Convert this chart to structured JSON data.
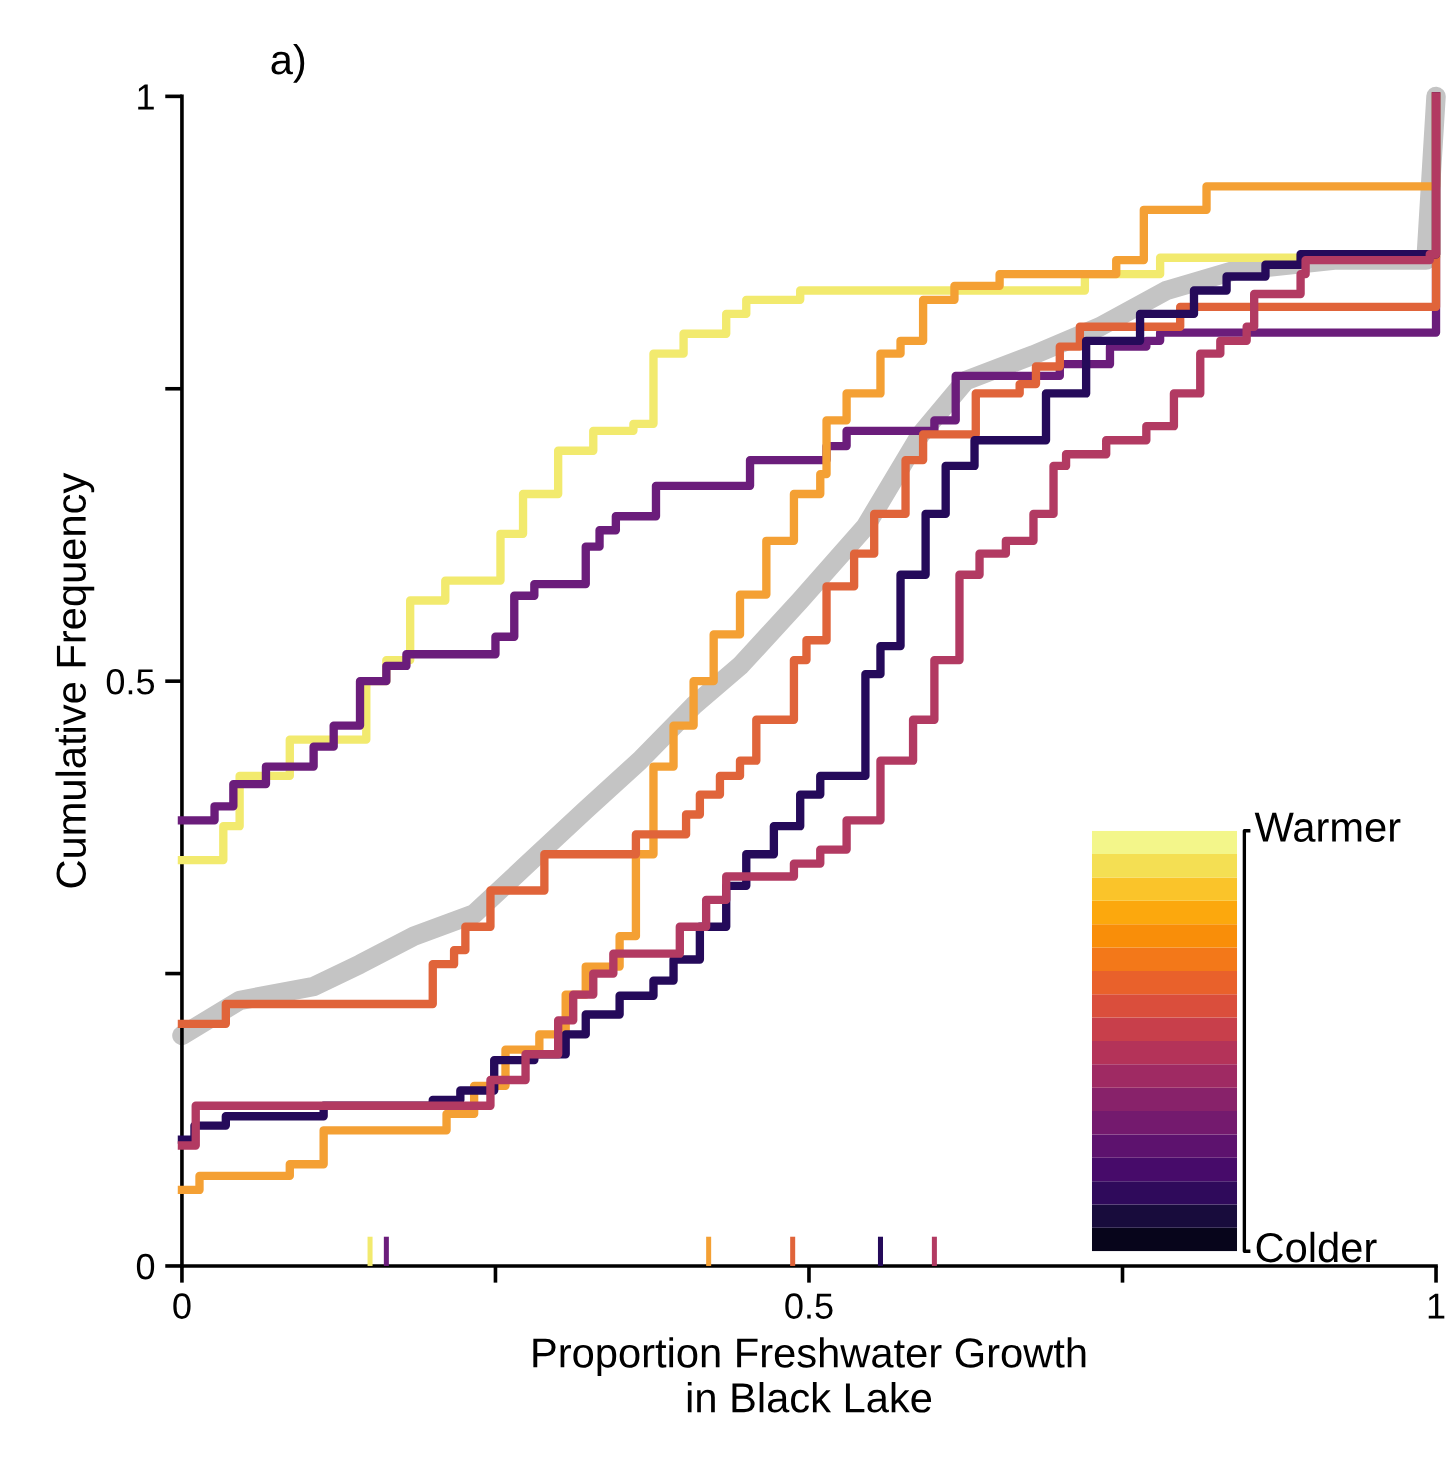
{
  "chart_data": {
    "type": "step",
    "title": "a)",
    "xlabel": "Proportion Freshwater Growth\nin Black Lake",
    "ylabel": "Cumulative Frequency",
    "xlim": [
      0,
      1
    ],
    "ylim": [
      0,
      1
    ],
    "xticks": [
      0,
      {
        "value": 0.25,
        "label": null
      },
      0.5,
      {
        "value": 0.75,
        "label": null
      },
      1
    ],
    "yticks": [
      0,
      {
        "value": 0.25,
        "label": null
      },
      0.5,
      {
        "value": 0.75,
        "label": null
      },
      1
    ],
    "grid": false,
    "marker": "none",
    "line_style": "solid",
    "annotations": [
      "Warmer",
      "Colder"
    ],
    "series": [
      {
        "type": "line",
        "color": "#c4c4c4",
        "x": [
          0,
          0.046,
          0.105,
          0.142,
          0.185,
          0.233,
          0.274,
          0.322,
          0.365,
          0.408,
          0.445,
          0.493,
          0.545,
          0.589,
          0.625,
          0.679,
          0.732,
          0.785,
          0.839,
          0.919,
          0.992,
          1
        ],
        "values": [
          0.197,
          0.227,
          0.239,
          0.258,
          0.282,
          0.301,
          0.342,
          0.39,
          0.432,
          0.479,
          0.513,
          0.569,
          0.632,
          0.711,
          0.757,
          0.779,
          0.803,
          0.834,
          0.851,
          0.86,
          0.86,
          1
        ]
      },
      {
        "color": "#f2ea6e",
        "x": [
          0,
          0.033,
          0.046,
          0.086,
          0.147,
          0.163,
          0.182,
          0.21,
          0.254,
          0.272,
          0.3,
          0.328,
          0.36,
          0.376,
          0.4,
          0.434,
          0.45,
          0.493,
          0.72,
          0.78,
          0.995,
          1
        ],
        "values": [
          0.347,
          0.376,
          0.419,
          0.45,
          0.5,
          0.518,
          0.569,
          0.586,
          0.626,
          0.66,
          0.697,
          0.714,
          0.72,
          0.78,
          0.797,
          0.814,
          0.826,
          0.834,
          0.848,
          0.862,
          0.862,
          1
        ]
      },
      {
        "color": "#6b1d7b",
        "x": [
          0,
          0.026,
          0.041,
          0.067,
          0.105,
          0.121,
          0.142,
          0.163,
          0.179,
          0.25,
          0.265,
          0.281,
          0.322,
          0.333,
          0.346,
          0.378,
          0.453,
          0.514,
          0.53,
          0.6,
          0.617,
          0.7,
          0.74,
          0.769,
          0.78,
          0.995,
          1
        ],
        "values": [
          0.381,
          0.393,
          0.412,
          0.427,
          0.444,
          0.462,
          0.5,
          0.513,
          0.523,
          0.538,
          0.573,
          0.583,
          0.615,
          0.629,
          0.641,
          0.667,
          0.689,
          0.701,
          0.714,
          0.723,
          0.761,
          0.771,
          0.786,
          0.791,
          0.798,
          0.798,
          1
        ]
      },
      {
        "color": "#f4a034",
        "x": [
          0,
          0.014,
          0.086,
          0.113,
          0.211,
          0.233,
          0.258,
          0.285,
          0.306,
          0.322,
          0.349,
          0.362,
          0.376,
          0.392,
          0.408,
          0.424,
          0.445,
          0.466,
          0.488,
          0.509,
          0.514,
          0.53,
          0.557,
          0.573,
          0.591,
          0.616,
          0.652,
          0.745,
          0.767,
          0.817,
          0.995,
          1
        ],
        "values": [
          0.065,
          0.077,
          0.087,
          0.116,
          0.13,
          0.154,
          0.185,
          0.198,
          0.232,
          0.256,
          0.282,
          0.352,
          0.427,
          0.462,
          0.5,
          0.54,
          0.574,
          0.62,
          0.66,
          0.677,
          0.723,
          0.746,
          0.78,
          0.791,
          0.826,
          0.838,
          0.848,
          0.86,
          0.903,
          0.923,
          0.923,
          1
        ]
      },
      {
        "color": "#e0643a",
        "x": [
          0,
          0.035,
          0.2,
          0.217,
          0.226,
          0.246,
          0.289,
          0.362,
          0.402,
          0.413,
          0.429,
          0.445,
          0.458,
          0.488,
          0.498,
          0.514,
          0.536,
          0.552,
          0.577,
          0.591,
          0.633,
          0.668,
          0.681,
          0.7,
          0.716,
          0.796,
          0.995,
          1
        ],
        "values": [
          0.207,
          0.224,
          0.258,
          0.27,
          0.29,
          0.321,
          0.352,
          0.369,
          0.386,
          0.403,
          0.419,
          0.432,
          0.467,
          0.518,
          0.535,
          0.581,
          0.609,
          0.643,
          0.689,
          0.711,
          0.746,
          0.754,
          0.769,
          0.786,
          0.803,
          0.82,
          0.82,
          1
        ]
      },
      {
        "color": "#250a5a",
        "x": [
          0,
          0.01,
          0.035,
          0.113,
          0.2,
          0.222,
          0.249,
          0.281,
          0.306,
          0.322,
          0.349,
          0.376,
          0.392,
          0.413,
          0.434,
          0.45,
          0.472,
          0.493,
          0.509,
          0.545,
          0.557,
          0.573,
          0.593,
          0.609,
          0.632,
          0.689,
          0.721,
          0.764,
          0.807,
          0.833,
          0.864,
          0.892,
          0.995,
          1
        ],
        "values": [
          0.108,
          0.12,
          0.128,
          0.137,
          0.142,
          0.15,
          0.176,
          0.181,
          0.198,
          0.215,
          0.231,
          0.244,
          0.262,
          0.29,
          0.325,
          0.352,
          0.376,
          0.403,
          0.419,
          0.506,
          0.53,
          0.591,
          0.643,
          0.684,
          0.706,
          0.746,
          0.791,
          0.814,
          0.834,
          0.846,
          0.856,
          0.865,
          0.865,
          1
        ]
      },
      {
        "color": "#b23a62",
        "x": [
          0,
          0.011,
          0.246,
          0.274,
          0.3,
          0.312,
          0.328,
          0.344,
          0.397,
          0.418,
          0.434,
          0.488,
          0.509,
          0.53,
          0.557,
          0.583,
          0.6,
          0.62,
          0.636,
          0.657,
          0.679,
          0.695,
          0.705,
          0.737,
          0.769,
          0.791,
          0.812,
          0.828,
          0.849,
          0.855,
          0.892,
          0.896,
          0.995,
          1
        ],
        "values": [
          0.103,
          0.137,
          0.159,
          0.181,
          0.21,
          0.232,
          0.25,
          0.267,
          0.29,
          0.313,
          0.333,
          0.344,
          0.356,
          0.381,
          0.432,
          0.467,
          0.518,
          0.591,
          0.609,
          0.62,
          0.643,
          0.684,
          0.694,
          0.706,
          0.718,
          0.746,
          0.78,
          0.791,
          0.803,
          0.831,
          0.848,
          0.86,
          0.865,
          1
        ]
      },
      {
        "type": "bar",
        "x": [
          0.15,
          0.163,
          0.42,
          0.487,
          0.557,
          0.6
        ],
        "values": [
          0.025,
          0.025,
          0.025,
          0.025,
          0.025,
          0.025
        ],
        "colors": [
          "#f2ea6e",
          "#6b1d7b",
          "#f4a034",
          "#e0643a",
          "#250a5a",
          "#b23a62"
        ]
      }
    ]
  }
}
